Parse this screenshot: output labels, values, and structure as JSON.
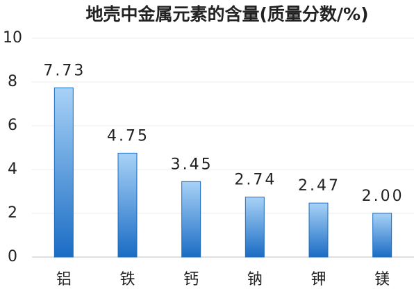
{
  "chart_data": {
    "type": "bar",
    "title": "地壳中金属元素的含量(质量分数/%)",
    "categories": [
      "铝",
      "铁",
      "钙",
      "钠",
      "钾",
      "镁"
    ],
    "values": [
      7.73,
      4.75,
      3.45,
      2.74,
      2.47,
      2.0
    ],
    "value_labels": [
      "7.73",
      "4.75",
      "3.45",
      "2.74",
      "2.47",
      "2.00"
    ],
    "color": "#1a6cc4",
    "ylim": [
      0,
      10
    ],
    "yticks": [
      0,
      2,
      4,
      6,
      8,
      10
    ],
    "grid": true
  }
}
